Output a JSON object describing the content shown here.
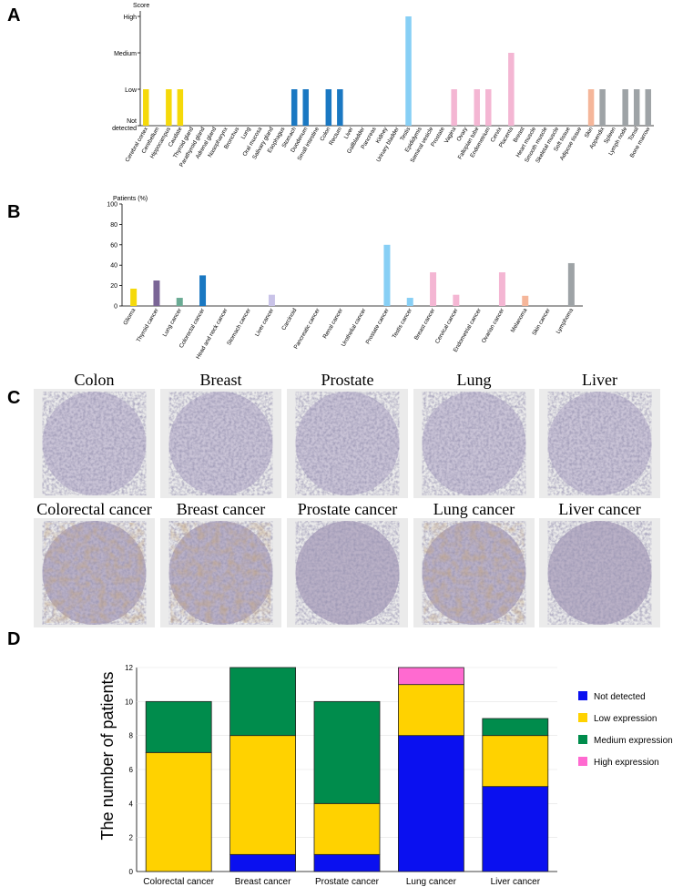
{
  "panel_labels": {
    "a": "A",
    "b": "B",
    "c": "C",
    "d": "D"
  },
  "chart_data": [
    {
      "id": "A",
      "type": "bar",
      "ylabel": "Score",
      "y_levels": [
        "Not detected",
        "Low",
        "Medium",
        "High"
      ],
      "categories": [
        "Cerebral cortex",
        "Cerebellum",
        "Hippocampus",
        "Caudate",
        "Thyroid gland",
        "Parathyroid gland",
        "Adrenal gland",
        "Nasopharynx",
        "Bronchus",
        "Lung",
        "Oral mucosa",
        "Salivary gland",
        "Esophagus",
        "Stomach",
        "Duodenum",
        "Small intestine",
        "Colon",
        "Rectum",
        "Liver",
        "Gallbladder",
        "Pancreas",
        "Kidney",
        "Urinary bladder",
        "Testis",
        "Epididymis",
        "Seminal vesicle",
        "Prostate",
        "Vagina",
        "Ovary",
        "Fallopian tube",
        "Endometrium",
        "Cervix",
        "Placenta",
        "Breast",
        "Heart muscle",
        "Smooth muscle",
        "Skeletal muscle",
        "Soft tissue",
        "Adipose tissue",
        "Skin",
        "Appendix",
        "Spleen",
        "Lymph node",
        "Tonsil",
        "Bone marrow"
      ],
      "values": [
        1,
        0,
        1,
        1,
        0,
        0,
        0,
        0,
        0,
        0,
        0,
        0,
        0,
        1,
        1,
        0,
        1,
        1,
        0,
        0,
        0,
        0,
        0,
        3,
        0,
        0,
        0,
        1,
        0,
        1,
        1,
        0,
        2,
        0,
        0,
        0,
        0,
        0,
        0,
        1,
        1,
        0,
        1,
        1,
        1
      ],
      "colors": [
        "#f5d90a",
        "#f5d90a",
        "#f5d90a",
        "#f5d90a",
        "#f5d90a",
        "#f5d90a",
        "#f5d90a",
        "#1a78c2",
        "#1a78c2",
        "#1a78c2",
        "#1a78c2",
        "#1a78c2",
        "#1a78c2",
        "#1a78c2",
        "#1a78c2",
        "#1a78c2",
        "#1a78c2",
        "#1a78c2",
        "#1a78c2",
        "#1a78c2",
        "#1a78c2",
        "#1a78c2",
        "#1a78c2",
        "#87cff5",
        "#87cff5",
        "#87cff5",
        "#87cff5",
        "#f4b6d3",
        "#f4b6d3",
        "#f4b6d3",
        "#f4b6d3",
        "#f4b6d3",
        "#f4b6d3",
        "#f4b6d3",
        "#f4b6d3",
        "#f4b6d3",
        "#f4b6d3",
        "#f4b6d3",
        "#f4b6d3",
        "#f5b69a",
        "#9ea3a6",
        "#9ea3a6",
        "#9ea3a6",
        "#9ea3a6",
        "#9ea3a6"
      ]
    },
    {
      "id": "B",
      "type": "bar",
      "ylabel": "Patients (%)",
      "ylim": [
        0,
        100
      ],
      "yticks": [
        0,
        20,
        40,
        60,
        80,
        100
      ],
      "categories": [
        "Glioma",
        "Thyroid cancer",
        "Lung cancer",
        "Colorectal cancer",
        "Head and neck cancer",
        "Stomach cancer",
        "Liver cancer",
        "Carcinoid",
        "Pancreatic cancer",
        "Renal cancer",
        "Urothelial cancer",
        "Prostate cancer",
        "Testis cancer",
        "Breast cancer",
        "Cervical cancer",
        "Endometrial cancer",
        "Ovarian cancer",
        "Melanoma",
        "Skin cancer",
        "Lymphoma"
      ],
      "values": [
        17,
        25,
        8,
        30,
        0,
        0,
        11,
        0,
        0,
        0,
        0,
        60,
        8,
        33,
        11,
        0,
        33,
        10,
        0,
        42
      ],
      "colors": [
        "#f5d90a",
        "#7a6596",
        "#6aab94",
        "#1a78c2",
        "#1a78c2",
        "#1a78c2",
        "#c9c3e8",
        "#1a78c2",
        "#1a78c2",
        "#1a78c2",
        "#1a78c2",
        "#87cff5",
        "#87cff5",
        "#f4b6d3",
        "#f4b6d3",
        "#f4b6d3",
        "#f4b6d3",
        "#f5b69a",
        "#f5b69a",
        "#9ea3a6"
      ]
    },
    {
      "id": "D",
      "type": "bar",
      "stacked": true,
      "ylabel": "The number of patients",
      "ylim": [
        0,
        12
      ],
      "yticks": [
        0,
        2,
        4,
        6,
        8,
        10,
        12
      ],
      "categories": [
        "Colorectal cancer",
        "Breast cancer",
        "Prostate cancer",
        "Lung cancer",
        "Liver cancer"
      ],
      "series": [
        {
          "name": "Not detected",
          "color": "#0a10f0",
          "values": [
            0,
            1,
            1,
            8,
            5
          ]
        },
        {
          "name": "Low expression",
          "color": "#ffd200",
          "values": [
            7,
            7,
            3,
            3,
            3
          ]
        },
        {
          "name": "Medium expression",
          "color": "#008c4c",
          "values": [
            3,
            4,
            6,
            0,
            1
          ]
        },
        {
          "name": "High expression",
          "color": "#ff6ad0",
          "values": [
            0,
            0,
            0,
            1,
            0
          ]
        }
      ]
    }
  ],
  "ihc_panel": {
    "normal_titles": [
      "Colon",
      "Breast",
      "Prostate",
      "Lung",
      "Liver"
    ],
    "cancer_titles": [
      "Colorectal cancer",
      "Breast cancer",
      "Prostate cancer",
      "Lung cancer",
      "Liver cancer"
    ]
  }
}
